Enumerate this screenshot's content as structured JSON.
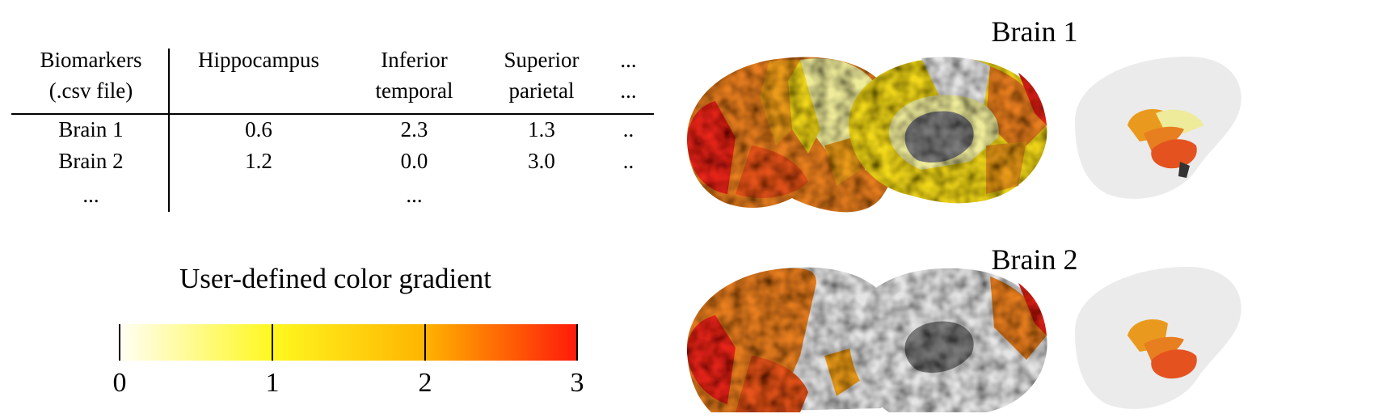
{
  "table": {
    "columns": [
      {
        "line1": "Biomarkers",
        "line2": "(.csv file)"
      },
      {
        "line1": "Hippocampus",
        "line2": ""
      },
      {
        "line1": "Inferior",
        "line2": "temporal"
      },
      {
        "line1": "Superior",
        "line2": "parietal"
      },
      {
        "line1": "...",
        "line2": "..."
      }
    ],
    "rows": [
      [
        "Brain 1",
        "0.6",
        "2.3",
        "1.3",
        ".."
      ],
      [
        "Brain 2",
        "1.2",
        "0.0",
        "3.0",
        ".."
      ],
      [
        "...",
        "",
        "...",
        "",
        ""
      ]
    ]
  },
  "gradient": {
    "title": "User-defined color gradient",
    "ticks": [
      "0",
      "1",
      "2",
      "3"
    ],
    "stops": [
      "#fffef5",
      "#fff820",
      "#ffb400",
      "#ff1a0a"
    ]
  },
  "brains": [
    {
      "title": "Brain 1"
    },
    {
      "title": "Brain 2"
    }
  ],
  "colors": {
    "red": "#e8281c",
    "orange_red": "#e4531f",
    "orange": "#e77e20",
    "amber": "#e99a1e",
    "yellow": "#f2d81e",
    "pale_yellow": "#eeeb9a",
    "gray_cortex": "#e4e4e4",
    "dark_gray": "#7a7a7a"
  }
}
